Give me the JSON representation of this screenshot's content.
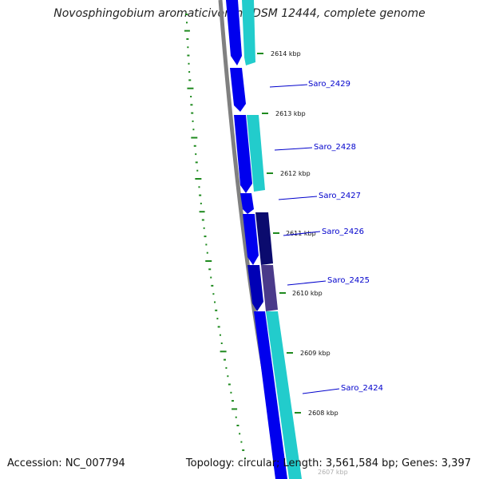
{
  "title": "Novosphingobium aromaticivorans DSM 12444, complete genome",
  "footer": {
    "accession": "Accession: NC_007794",
    "summary": "Topology: circular; Length: 3,561,584 bp; Genes: 3,397"
  },
  "colors": {
    "backbone": "#808080",
    "gene_blue": "#0000ee",
    "gene_dark_blue": "#0000a0",
    "gene_cyan": "#22cccc",
    "gene_navy": "#0b0b6e",
    "gene_purple": "#4a3a8a",
    "gc_green": "#1e8a1e",
    "label": "#0000cc"
  },
  "kbp_ticks": [
    {
      "label": "2614 kbp"
    },
    {
      "label": "2613 kbp"
    },
    {
      "label": "2612 kbp"
    },
    {
      "label": "2611 kbp"
    },
    {
      "label": "2610 kbp"
    },
    {
      "label": "2609 kbp"
    },
    {
      "label": "2608 kbp"
    },
    {
      "label": "2607 kbp"
    }
  ],
  "gene_labels": [
    {
      "name": "Saro_2429"
    },
    {
      "name": "Saro_2428"
    },
    {
      "name": "Saro_2427"
    },
    {
      "name": "Saro_2426"
    },
    {
      "name": "Saro_2425"
    },
    {
      "name": "Saro_2424"
    }
  ]
}
